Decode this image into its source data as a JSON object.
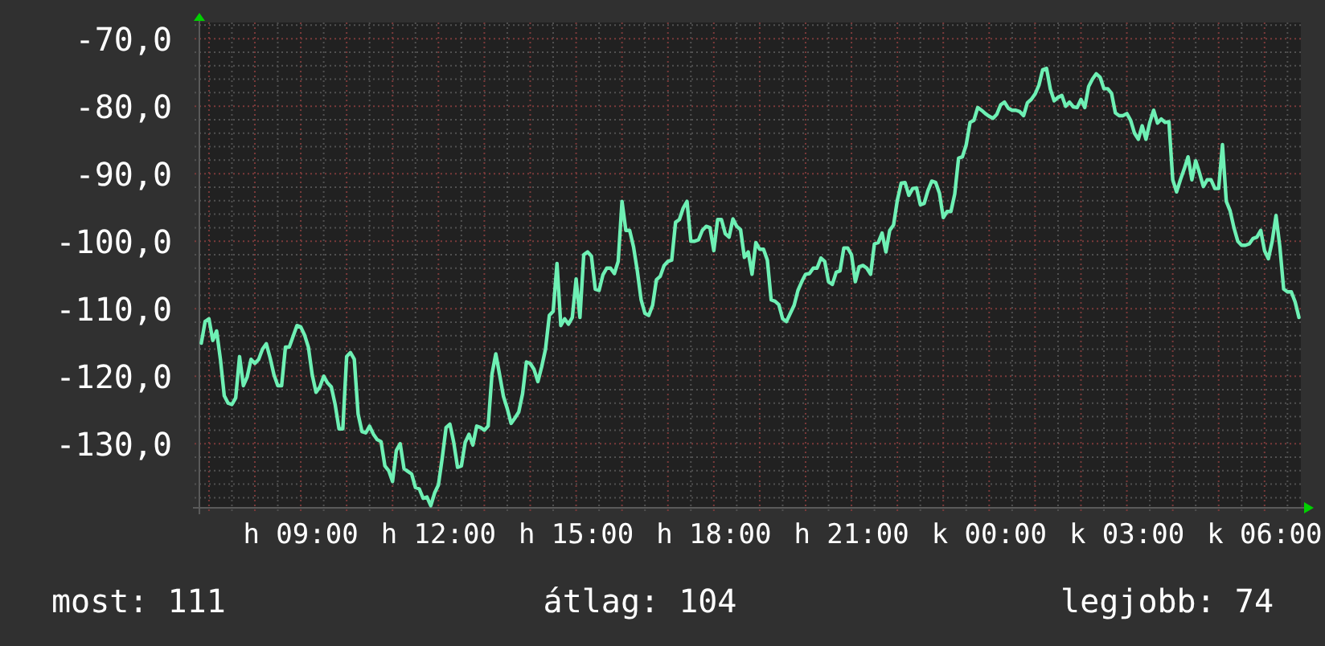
{
  "chart_data": {
    "type": "line",
    "categories": [
      null,
      null,
      null,
      null,
      null,
      null,
      null,
      null,
      null,
      null,
      null,
      null,
      null,
      null,
      null,
      null,
      null,
      null,
      null,
      null,
      null,
      null,
      null,
      null,
      null,
      null,
      "h 09:00",
      null,
      null,
      null,
      null,
      null,
      null,
      null,
      null,
      null,
      null,
      null,
      null,
      null,
      null,
      null,
      null,
      null,
      null,
      null,
      null,
      null,
      null,
      null,
      null,
      null,
      null,
      null,
      null,
      null,
      null,
      null,
      null,
      null,
      null,
      null,
      "h 12:00",
      null,
      null,
      null,
      null,
      null,
      null,
      null,
      null,
      null,
      null,
      null,
      null,
      null,
      null,
      null,
      null,
      null,
      null,
      null,
      null,
      null,
      null,
      null,
      null,
      null,
      null,
      null,
      null,
      null,
      null,
      null,
      null,
      null,
      null,
      null,
      "h 15:00",
      null,
      null,
      null,
      null,
      null,
      null,
      null,
      null,
      null,
      null,
      null,
      null,
      null,
      null,
      null,
      null,
      null,
      null,
      null,
      null,
      null,
      null,
      null,
      null,
      null,
      null,
      null,
      null,
      null,
      null,
      null,
      null,
      null,
      null,
      null,
      "h 18:00",
      null,
      null,
      null,
      null,
      null,
      null,
      null,
      null,
      null,
      null,
      null,
      null,
      null,
      null,
      null,
      null,
      null,
      null,
      null,
      null,
      null,
      null,
      null,
      null,
      null,
      null,
      null,
      null,
      null,
      null,
      null,
      null,
      null,
      null,
      null,
      "h 21:00",
      null,
      null,
      null,
      null,
      null,
      null,
      null,
      null,
      null,
      null,
      null,
      null,
      null,
      null,
      null,
      null,
      null,
      null,
      null,
      null,
      null,
      null,
      null,
      null,
      null,
      null,
      null,
      null,
      null,
      null,
      null,
      null,
      null,
      null,
      null,
      "k 00:00",
      null,
      null,
      null,
      null,
      null,
      null,
      null,
      null,
      null,
      null,
      null,
      null,
      null,
      null,
      null,
      null,
      null,
      null,
      null,
      null,
      null,
      null,
      null,
      null,
      null,
      null,
      null,
      null,
      null,
      null,
      null,
      null,
      null,
      null,
      null,
      "k 03:00",
      null,
      null,
      null,
      null,
      null,
      null,
      null,
      null,
      null,
      null,
      null,
      null,
      null,
      null,
      null,
      null,
      null,
      null,
      null,
      null,
      null,
      null,
      null,
      null,
      null,
      null,
      null,
      null,
      null,
      null,
      null,
      null,
      null,
      null,
      null,
      "k 06:00",
      null,
      null,
      null,
      null,
      null,
      null,
      null,
      null,
      null
    ],
    "ylim": [
      -139.5,
      -67.6
    ],
    "yticks": [
      {
        "value": -138,
        "label": null
      },
      {
        "value": -136,
        "label": null
      },
      {
        "value": -134,
        "label": null
      },
      {
        "value": -132,
        "label": null
      },
      {
        "value": -130,
        "label": "-130,0"
      },
      {
        "value": -128,
        "label": null
      },
      {
        "value": -126,
        "label": null
      },
      {
        "value": -124,
        "label": null
      },
      {
        "value": -122,
        "label": null
      },
      {
        "value": -120,
        "label": "-120,0"
      },
      {
        "value": -118,
        "label": null
      },
      {
        "value": -116,
        "label": null
      },
      {
        "value": -114,
        "label": null
      },
      {
        "value": -112,
        "label": null
      },
      {
        "value": -110,
        "label": "-110,0"
      },
      {
        "value": -108,
        "label": null
      },
      {
        "value": -106,
        "label": null
      },
      {
        "value": -104,
        "label": null
      },
      {
        "value": -102,
        "label": null
      },
      {
        "value": -100,
        "label": "-100,0"
      },
      {
        "value": -98,
        "label": null
      },
      {
        "value": -96,
        "label": null
      },
      {
        "value": -94,
        "label": null
      },
      {
        "value": -92,
        "label": null
      },
      {
        "value": -90,
        "label": "-90,0"
      },
      {
        "value": -88,
        "label": null
      },
      {
        "value": -86,
        "label": null
      },
      {
        "value": -84,
        "label": null
      },
      {
        "value": -82,
        "label": null
      },
      {
        "value": -80,
        "label": "-80,0"
      },
      {
        "value": -78,
        "label": null
      },
      {
        "value": -76,
        "label": null
      },
      {
        "value": -74,
        "label": null
      },
      {
        "value": -72,
        "label": null
      },
      {
        "value": -70,
        "label": "-70,0"
      },
      {
        "value": -68,
        "label": null
      }
    ],
    "grid": true,
    "annotations": [
      "most: 111",
      "átlag: 104",
      "legjobb: 74"
    ],
    "series": [
      {
        "color": "#6ef0b4",
        "values": [
          -115.1,
          -111.9,
          -111.5,
          -114.7,
          -113.3,
          -117.5,
          -122.9,
          -124.0,
          -124.2,
          -123.2,
          -117.1,
          -121.4,
          -120.1,
          -117.5,
          -118.1,
          -117.5,
          -116.0,
          -115.2,
          -117.3,
          -119.8,
          -121.4,
          -121.4,
          -115.7,
          -115.7,
          -114.1,
          -112.5,
          -112.7,
          -113.9,
          -115.7,
          -119.8,
          -122.4,
          -121.6,
          -120.0,
          -121.0,
          -121.6,
          -124.2,
          -127.8,
          -127.8,
          -117.1,
          -116.5,
          -117.5,
          -125.6,
          -128.2,
          -128.4,
          -127.4,
          -128.6,
          -129.4,
          -129.7,
          -133.3,
          -134.0,
          -135.6,
          -131.0,
          -130.0,
          -133.7,
          -134.1,
          -134.5,
          -136.5,
          -136.7,
          -138.1,
          -137.9,
          -139.2,
          -137.3,
          -136.1,
          -132.1,
          -127.6,
          -127.1,
          -129.8,
          -133.5,
          -133.3,
          -129.8,
          -128.6,
          -130.2,
          -127.4,
          -127.6,
          -128.0,
          -127.4,
          -119.7,
          -116.7,
          -119.8,
          -123.0,
          -124.8,
          -127.0,
          -126.2,
          -125.3,
          -122.6,
          -117.9,
          -118.1,
          -119.0,
          -120.8,
          -118.6,
          -116.0,
          -111.0,
          -110.4,
          -103.3,
          -112.5,
          -111.5,
          -112.3,
          -111.3,
          -105.6,
          -111.3,
          -102.0,
          -101.6,
          -102.2,
          -107.1,
          -107.3,
          -105.0,
          -104.0,
          -104.0,
          -104.8,
          -103.0,
          -94.1,
          -98.4,
          -98.4,
          -100.8,
          -104.4,
          -108.7,
          -110.7,
          -111.0,
          -109.5,
          -105.7,
          -105.2,
          -103.6,
          -103.0,
          -102.8,
          -97.2,
          -96.8,
          -95.1,
          -94.1,
          -100.0,
          -100.0,
          -99.8,
          -98.4,
          -97.8,
          -98.0,
          -101.4,
          -96.8,
          -96.8,
          -98.9,
          -99.4,
          -96.7,
          -97.8,
          -98.3,
          -102.4,
          -101.6,
          -104.9,
          -100.2,
          -101.2,
          -101.2,
          -102.8,
          -108.7,
          -108.9,
          -109.4,
          -111.5,
          -111.9,
          -110.7,
          -109.5,
          -107.3,
          -106.0,
          -104.9,
          -104.8,
          -104.0,
          -104.0,
          -102.5,
          -103.0,
          -106.0,
          -106.4,
          -104.6,
          -104.4,
          -101.0,
          -101.0,
          -102.0,
          -106.0,
          -103.8,
          -103.6,
          -104.0,
          -104.9,
          -100.4,
          -100.2,
          -98.8,
          -101.6,
          -98.4,
          -97.6,
          -93.9,
          -91.4,
          -91.3,
          -93.2,
          -92.2,
          -92.1,
          -94.6,
          -94.4,
          -92.5,
          -91.1,
          -91.3,
          -92.9,
          -96.5,
          -95.6,
          -95.6,
          -93.0,
          -87.7,
          -87.5,
          -85.7,
          -82.4,
          -82.1,
          -80.2,
          -80.6,
          -81.1,
          -81.5,
          -81.8,
          -81.2,
          -79.8,
          -79.4,
          -80.3,
          -80.6,
          -80.6,
          -80.8,
          -81.4,
          -79.5,
          -79.0,
          -78.2,
          -76.9,
          -74.6,
          -74.4,
          -77.5,
          -79.2,
          -78.7,
          -78.4,
          -80.0,
          -79.4,
          -80.1,
          -80.2,
          -79.0,
          -80.2,
          -77.1,
          -76.0,
          -75.2,
          -75.7,
          -77.4,
          -77.4,
          -78.1,
          -81.0,
          -81.4,
          -81.4,
          -81.1,
          -82.1,
          -84.0,
          -84.9,
          -82.9,
          -84.9,
          -82.4,
          -80.6,
          -82.5,
          -81.9,
          -82.4,
          -82.3,
          -90.9,
          -92.7,
          -90.9,
          -89.3,
          -87.5,
          -90.9,
          -88.1,
          -89.9,
          -91.9,
          -90.9,
          -90.9,
          -92.2,
          -92.2,
          -85.7,
          -94.1,
          -95.5,
          -98.0,
          -100.0,
          -100.6,
          -100.6,
          -100.4,
          -99.6,
          -99.4,
          -98.4,
          -101.4,
          -102.6,
          -100.0,
          -96.2,
          -100.8,
          -107.1,
          -107.5,
          -107.5,
          -109.0,
          -111.3
        ]
      }
    ]
  }
}
